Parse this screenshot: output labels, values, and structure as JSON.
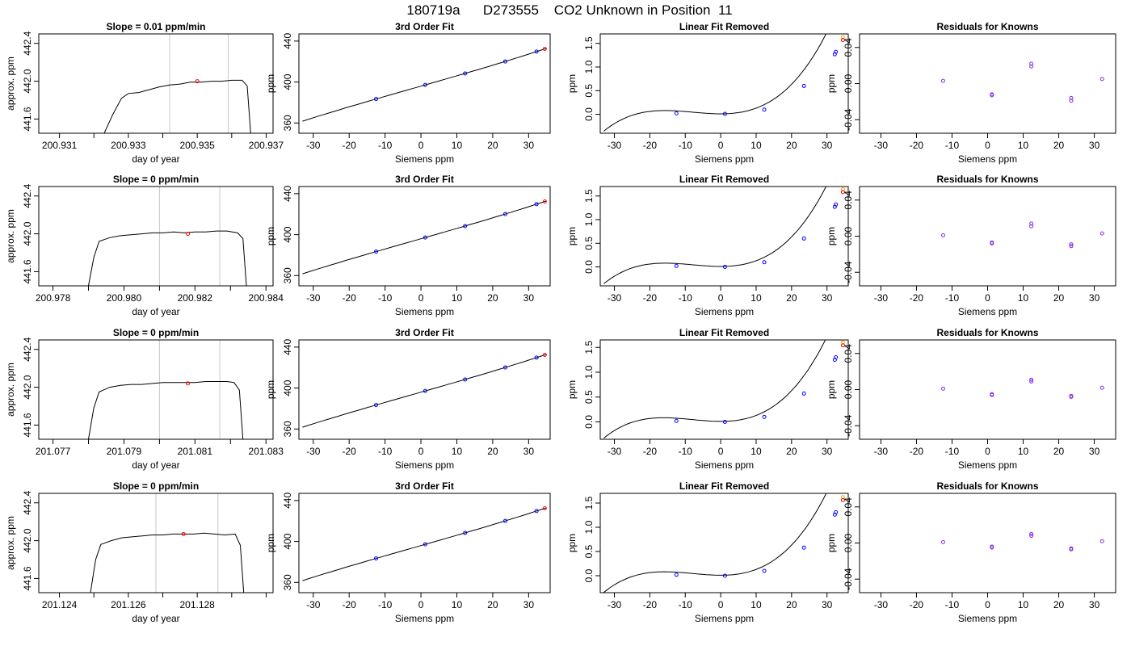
{
  "figure": {
    "title": "180719a      D273555    CO2 Unknown in Position  11",
    "colors": {
      "line": "#000000",
      "known": "#0000ff",
      "unknown": "#ff0000",
      "extra": "#ffa500",
      "residual": "#8a2be2",
      "marker_line": "#c8c8c8"
    }
  },
  "chart_data": [
    {
      "type": "line",
      "panel": "time-series",
      "row": 1,
      "title": "Slope =  0.01  ppm/min",
      "xlabel": "day of year",
      "ylabel": "approx. ppm",
      "xlim": [
        200.9304,
        200.9372
      ],
      "ylim": [
        441.45,
        442.5
      ],
      "xticks": [
        200.931,
        200.932,
        200.933,
        200.934,
        200.935,
        200.936,
        200.937
      ],
      "xtick_labels": [
        "200.931",
        "",
        "200.933",
        "",
        "200.935",
        "",
        "200.937"
      ],
      "yticks": [
        441.6,
        442.0,
        442.4
      ],
      "ytick_labels": [
        "441.6",
        "442.0",
        "442.4"
      ],
      "markers_x": [
        200.9342,
        200.9359
      ],
      "series": [
        {
          "x": [
            200.9323,
            200.93255,
            200.9328,
            200.933,
            200.9333,
            200.9336,
            200.9339,
            200.9342,
            200.9345,
            200.9348,
            200.9351,
            200.9354,
            200.9357,
            200.936,
            200.9363,
            200.93645,
            200.93655
          ],
          "y": [
            441.45,
            441.65,
            441.82,
            441.87,
            441.88,
            441.91,
            441.94,
            441.96,
            441.97,
            441.99,
            441.99,
            442.0,
            442.0,
            442.01,
            442.01,
            441.95,
            441.45
          ]
        }
      ],
      "unknown_point": {
        "x": 200.935,
        "y": 442.0
      }
    },
    {
      "type": "scatter",
      "panel": "third-order-fit",
      "row": 1,
      "title": "3rd Order Fit",
      "xlabel": "Siemens ppm",
      "ylabel": "ppm",
      "xlim": [
        -34,
        36
      ],
      "ylim": [
        350,
        447
      ],
      "xticks": [
        -30,
        -20,
        -10,
        0,
        10,
        20,
        30
      ],
      "yticks": [
        360,
        400,
        440
      ],
      "known_x": [
        -12.5,
        1.2,
        12.3,
        23.5,
        32.2
      ],
      "known_y": [
        383.5,
        397.2,
        408.5,
        420,
        428.6
      ],
      "unknown_point": {
        "x": 34.5,
        "y": 442.0
      },
      "fit_coeffs": [
        396,
        1.0,
        0.0002,
        4e-05
      ]
    },
    {
      "type": "scatter",
      "panel": "linear-fit-removed",
      "row": 1,
      "title": "Linear Fit Removed",
      "xlabel": "Siemens ppm",
      "ylabel": "ppm",
      "xlim": [
        -34,
        36
      ],
      "ylim": [
        -0.4,
        1.7
      ],
      "xticks": [
        -30,
        -20,
        -10,
        0,
        10,
        20,
        30
      ],
      "yticks": [
        0.0,
        0.5,
        1.0,
        1.5
      ],
      "ytick_labels": [
        "0.0",
        "0.5",
        "1.0",
        "1.5"
      ],
      "known_x": [
        -12.5,
        1.2,
        12.3,
        23.5,
        32.2,
        32.5
      ],
      "known_y": [
        0.02,
        0.01,
        0.1,
        0.6,
        1.27,
        1.32
      ],
      "unknown_point": {
        "x": 34.5,
        "y": 1.57
      },
      "extra_point": {
        "x": 34.5,
        "y": 1.63
      },
      "curve_coeffs": [
        0.01,
        0.0,
        0.000845,
        3.58e-05
      ]
    },
    {
      "type": "scatter",
      "panel": "residuals",
      "row": 1,
      "title": "Residuals for Knowns",
      "xlabel": "Siemens ppm",
      "ylabel": "ppm",
      "xlim": [
        -36,
        36
      ],
      "ylim": [
        -0.055,
        0.055
      ],
      "xticks": [
        -30,
        -20,
        -10,
        0,
        10,
        20,
        30
      ],
      "yticks": [
        -0.04,
        0.0,
        0.04
      ],
      "ytick_labels": [
        "-0.04",
        "0.00",
        "0.04"
      ],
      "x": [
        -12.5,
        1.2,
        1.2,
        12.3,
        12.3,
        23.5,
        23.5,
        32.2
      ],
      "y": [
        0.003,
        -0.012,
        -0.013,
        0.022,
        0.019,
        -0.016,
        -0.019,
        0.005
      ]
    },
    {
      "type": "line",
      "panel": "time-series",
      "row": 2,
      "title": "Slope =  0  ppm/min",
      "xlabel": "day of year",
      "ylabel": "approx. ppm",
      "xlim": [
        200.9776,
        200.9842
      ],
      "ylim": [
        441.45,
        442.5
      ],
      "xticks": [
        200.978,
        200.979,
        200.98,
        200.981,
        200.982,
        200.983,
        200.984
      ],
      "xtick_labels": [
        "200.978",
        "",
        "200.980",
        "",
        "200.982",
        "",
        "200.984"
      ],
      "yticks": [
        441.6,
        442.0,
        442.4
      ],
      "ytick_labels": [
        "441.6",
        "442.0",
        "442.4"
      ],
      "markers_x": [
        200.981,
        200.9827
      ],
      "series": [
        {
          "x": [
            200.979,
            200.97915,
            200.9793,
            200.9796,
            200.9799,
            200.9802,
            200.9805,
            200.9808,
            200.9811,
            200.9814,
            200.9817,
            200.982,
            200.9823,
            200.9826,
            200.9829,
            200.9832,
            200.98335,
            200.98345
          ],
          "y": [
            441.45,
            441.75,
            441.92,
            441.96,
            441.98,
            441.99,
            442.0,
            442.01,
            442.01,
            442.02,
            442.01,
            442.02,
            442.02,
            442.03,
            442.03,
            442.01,
            441.95,
            441.45
          ]
        }
      ],
      "unknown_point": {
        "x": 200.9818,
        "y": 442.0
      }
    },
    {
      "type": "scatter",
      "panel": "third-order-fit",
      "row": 2,
      "title": "3rd Order Fit",
      "xlabel": "Siemens ppm",
      "ylabel": "ppm",
      "xlim": [
        -34,
        36
      ],
      "ylim": [
        350,
        447
      ],
      "xticks": [
        -30,
        -20,
        -10,
        0,
        10,
        20,
        30
      ],
      "yticks": [
        360,
        400,
        440
      ],
      "known_x": [
        -12.5,
        1.2,
        12.3,
        23.5,
        32.2
      ],
      "known_y": [
        383.5,
        397.2,
        408.5,
        420,
        428.6
      ],
      "unknown_point": {
        "x": 34.5,
        "y": 442.0
      },
      "fit_coeffs": [
        396,
        1.0,
        0.0002,
        4e-05
      ]
    },
    {
      "type": "scatter",
      "panel": "linear-fit-removed",
      "row": 2,
      "title": "Linear Fit Removed",
      "xlabel": "Siemens ppm",
      "ylabel": "ppm",
      "xlim": [
        -34,
        36
      ],
      "ylim": [
        -0.4,
        1.7
      ],
      "xticks": [
        -30,
        -20,
        -10,
        0,
        10,
        20,
        30
      ],
      "yticks": [
        0.0,
        0.5,
        1.0,
        1.5
      ],
      "ytick_labels": [
        "0.0",
        "0.5",
        "1.0",
        "1.5"
      ],
      "known_x": [
        -12.5,
        1.2,
        12.3,
        23.5,
        32.2,
        32.5
      ],
      "known_y": [
        0.02,
        0.0,
        0.1,
        0.6,
        1.27,
        1.32
      ],
      "unknown_point": {
        "x": 34.5,
        "y": 1.58
      },
      "extra_point": {
        "x": 34.5,
        "y": 1.64
      },
      "curve_coeffs": [
        0.01,
        0.0,
        0.000845,
        3.58e-05
      ]
    },
    {
      "type": "scatter",
      "panel": "residuals",
      "row": 2,
      "title": "Residuals for Knowns",
      "xlabel": "Siemens ppm",
      "ylabel": "ppm",
      "xlim": [
        -36,
        36
      ],
      "ylim": [
        -0.055,
        0.055
      ],
      "xticks": [
        -30,
        -20,
        -10,
        0,
        10,
        20,
        30
      ],
      "yticks": [
        -0.04,
        0.0,
        0.04
      ],
      "ytick_labels": [
        "-0.04",
        "0.00",
        "0.04"
      ],
      "x": [
        -12.5,
        1.2,
        1.2,
        12.3,
        12.3,
        23.5,
        23.5,
        32.2
      ],
      "y": [
        0.001,
        -0.007,
        -0.008,
        0.014,
        0.011,
        -0.009,
        -0.011,
        0.003
      ]
    },
    {
      "type": "line",
      "panel": "time-series",
      "row": 3,
      "title": "Slope =  0  ppm/min",
      "xlabel": "day of year",
      "ylabel": "approx. ppm",
      "xlim": [
        201.0766,
        201.0832
      ],
      "ylim": [
        441.45,
        442.5
      ],
      "xticks": [
        201.077,
        201.078,
        201.079,
        201.08,
        201.081,
        201.082,
        201.083
      ],
      "xtick_labels": [
        "201.077",
        "",
        "201.079",
        "",
        "201.081",
        "",
        "201.083"
      ],
      "yticks": [
        441.6,
        442.0,
        442.4
      ],
      "ytick_labels": [
        "441.6",
        "442.0",
        "442.4"
      ],
      "markers_x": [
        201.08,
        201.0817
      ],
      "series": [
        {
          "x": [
            201.078,
            201.07815,
            201.0783,
            201.0786,
            201.0789,
            201.0792,
            201.0795,
            201.0798,
            201.0801,
            201.0804,
            201.0807,
            201.081,
            201.0813,
            201.0816,
            201.0819,
            201.0821,
            201.08225,
            201.08235
          ],
          "y": [
            441.45,
            441.78,
            441.95,
            442.0,
            442.02,
            442.03,
            442.03,
            442.04,
            442.05,
            442.05,
            442.05,
            442.05,
            442.06,
            442.06,
            442.06,
            442.05,
            441.97,
            441.45
          ]
        }
      ],
      "unknown_point": {
        "x": 201.0808,
        "y": 442.04
      }
    },
    {
      "type": "scatter",
      "panel": "third-order-fit",
      "row": 3,
      "title": "3rd Order Fit",
      "xlabel": "Siemens ppm",
      "ylabel": "ppm",
      "xlim": [
        -34,
        36
      ],
      "ylim": [
        350,
        447
      ],
      "xticks": [
        -30,
        -20,
        -10,
        0,
        10,
        20,
        30
      ],
      "yticks": [
        360,
        400,
        440
      ],
      "known_x": [
        -12.5,
        1.2,
        12.3,
        23.5,
        32.2
      ],
      "known_y": [
        383.5,
        397.2,
        408.5,
        420,
        428.6
      ],
      "unknown_point": {
        "x": 34.5,
        "y": 442.0
      },
      "fit_coeffs": [
        396,
        1.0,
        0.0002,
        4e-05
      ]
    },
    {
      "type": "scatter",
      "panel": "linear-fit-removed",
      "row": 3,
      "title": "Linear Fit Removed",
      "xlabel": "Siemens ppm",
      "ylabel": "ppm",
      "xlim": [
        -34,
        36
      ],
      "ylim": [
        -0.35,
        1.65
      ],
      "xticks": [
        -30,
        -20,
        -10,
        0,
        10,
        20,
        30
      ],
      "yticks": [
        0.0,
        0.5,
        1.0,
        1.5
      ],
      "ytick_labels": [
        "0.0",
        "0.5",
        "1.0",
        "1.5"
      ],
      "known_x": [
        -12.5,
        1.2,
        12.3,
        23.5,
        32.2,
        32.5
      ],
      "known_y": [
        0.02,
        0.0,
        0.1,
        0.57,
        1.25,
        1.3
      ],
      "unknown_point": {
        "x": 34.5,
        "y": 1.54
      },
      "extra_point": {
        "x": 34.5,
        "y": 1.6
      },
      "curve_coeffs": [
        0.01,
        0.0,
        0.000845,
        3.5e-05
      ]
    },
    {
      "type": "scatter",
      "panel": "residuals",
      "row": 3,
      "title": "Residuals for Knowns",
      "xlabel": "Siemens ppm",
      "ylabel": "ppm",
      "xlim": [
        -36,
        36
      ],
      "ylim": [
        -0.055,
        0.055
      ],
      "xticks": [
        -30,
        -20,
        -10,
        0,
        10,
        20,
        30
      ],
      "yticks": [
        -0.04,
        0.0,
        0.04
      ],
      "ytick_labels": [
        "-0.04",
        "0.00",
        "0.04"
      ],
      "x": [
        -12.5,
        1.2,
        1.2,
        12.3,
        12.3,
        23.5,
        23.5,
        32.2
      ],
      "y": [
        0.001,
        -0.005,
        -0.006,
        0.011,
        0.009,
        -0.007,
        -0.008,
        0.002
      ]
    },
    {
      "type": "line",
      "panel": "time-series",
      "row": 4,
      "title": "Slope =  0  ppm/min",
      "xlabel": "day of year",
      "ylabel": "approx. ppm",
      "xlim": [
        201.1234,
        201.1302
      ],
      "ylim": [
        441.45,
        442.5
      ],
      "xticks": [
        201.124,
        201.125,
        201.126,
        201.127,
        201.128,
        201.129,
        201.13
      ],
      "xtick_labels": [
        "201.124",
        "",
        "201.126",
        "",
        "201.128",
        "",
        ""
      ],
      "yticks": [
        441.6,
        442.0,
        442.4
      ],
      "ytick_labels": [
        "441.6",
        "442.0",
        "442.4"
      ],
      "markers_x": [
        201.1268,
        201.1286
      ],
      "series": [
        {
          "x": [
            201.1249,
            201.12505,
            201.1252,
            201.1255,
            201.1258,
            201.1261,
            201.1264,
            201.1267,
            201.127,
            201.1273,
            201.1276,
            201.1279,
            201.1282,
            201.1285,
            201.1288,
            201.1291,
            201.12925,
            201.12935
          ],
          "y": [
            441.45,
            441.8,
            441.96,
            442.0,
            442.03,
            442.04,
            442.05,
            442.06,
            442.06,
            442.07,
            442.07,
            442.07,
            442.08,
            442.07,
            442.06,
            442.07,
            441.95,
            441.45
          ]
        }
      ],
      "unknown_point": {
        "x": 201.1276,
        "y": 442.07
      }
    },
    {
      "type": "scatter",
      "panel": "third-order-fit",
      "row": 4,
      "title": "3rd Order Fit",
      "xlabel": "Siemens ppm",
      "ylabel": "ppm",
      "xlim": [
        -34,
        36
      ],
      "ylim": [
        350,
        447
      ],
      "xticks": [
        -30,
        -20,
        -10,
        0,
        10,
        20,
        30
      ],
      "yticks": [
        360,
        400,
        440
      ],
      "known_x": [
        -12.5,
        1.2,
        12.3,
        23.5,
        32.2
      ],
      "known_y": [
        383.5,
        397.2,
        408.5,
        420,
        428.6
      ],
      "unknown_point": {
        "x": 34.5,
        "y": 442.0
      },
      "fit_coeffs": [
        396,
        1.0,
        0.0002,
        4e-05
      ]
    },
    {
      "type": "scatter",
      "panel": "linear-fit-removed",
      "row": 4,
      "title": "Linear Fit Removed",
      "xlabel": "Siemens ppm",
      "ylabel": "ppm",
      "xlim": [
        -34,
        36
      ],
      "ylim": [
        -0.35,
        1.7
      ],
      "xticks": [
        -30,
        -20,
        -10,
        0,
        10,
        20,
        30
      ],
      "yticks": [
        0.0,
        0.5,
        1.0,
        1.5
      ],
      "ytick_labels": [
        "0.0",
        "0.5",
        "1.0",
        "1.5"
      ],
      "known_x": [
        -12.5,
        1.2,
        12.3,
        23.5,
        32.2,
        32.5
      ],
      "known_y": [
        0.02,
        0.0,
        0.1,
        0.58,
        1.26,
        1.31
      ],
      "unknown_point": {
        "x": 34.5,
        "y": 1.56
      },
      "extra_point": {
        "x": 34.5,
        "y": 1.62
      },
      "curve_coeffs": [
        0.01,
        0.0,
        0.000845,
        3.55e-05
      ]
    },
    {
      "type": "scatter",
      "panel": "residuals",
      "row": 4,
      "title": "Residuals for Knowns",
      "xlabel": "Siemens ppm",
      "ylabel": "ppm",
      "xlim": [
        -36,
        36
      ],
      "ylim": [
        -0.055,
        0.055
      ],
      "xticks": [
        -30,
        -20,
        -10,
        0,
        10,
        20,
        30
      ],
      "yticks": [
        -0.04,
        0.0,
        0.04
      ],
      "ytick_labels": [
        "-0.04",
        "0.00",
        "0.04"
      ],
      "x": [
        -12.5,
        1.2,
        1.2,
        12.3,
        12.3,
        23.5,
        23.5,
        32.2
      ],
      "y": [
        0.001,
        -0.004,
        -0.005,
        0.01,
        0.008,
        -0.006,
        -0.007,
        0.002
      ]
    }
  ]
}
